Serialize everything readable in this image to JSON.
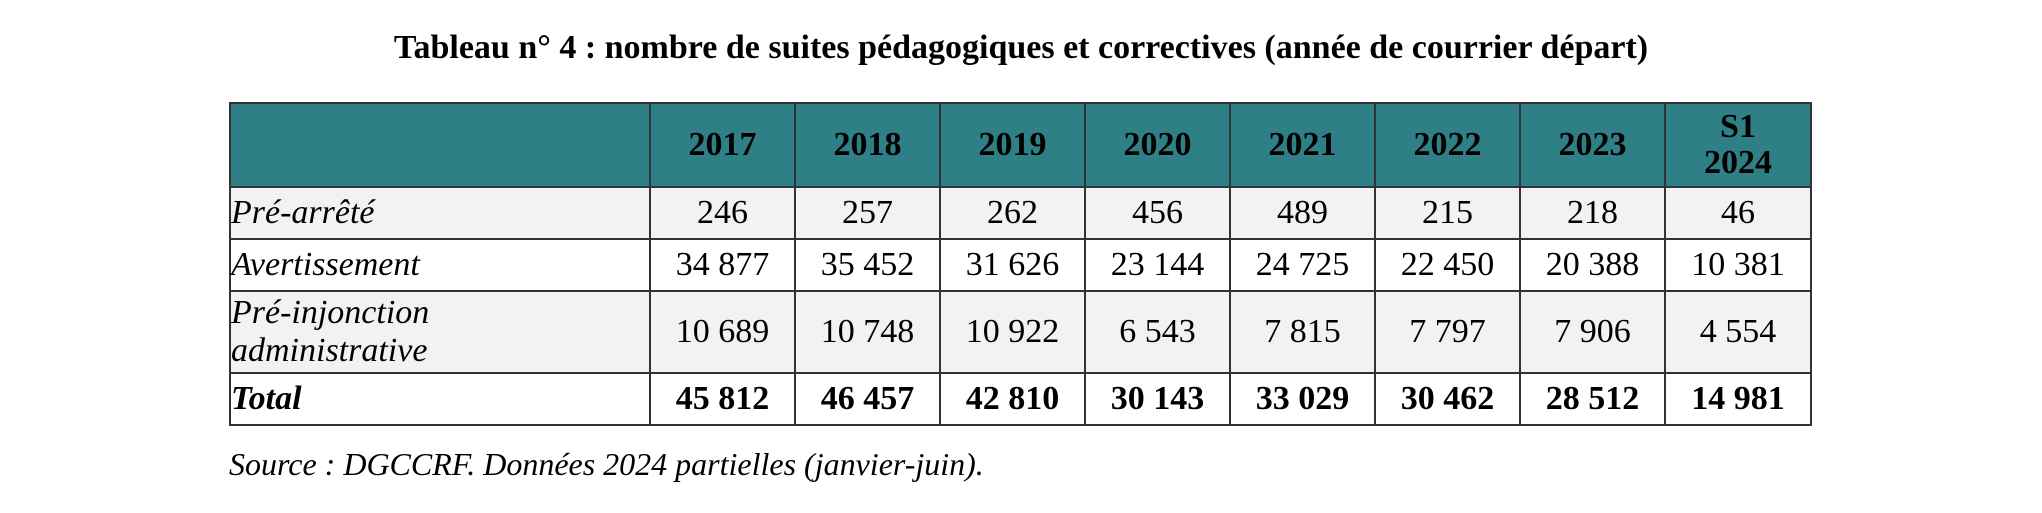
{
  "title": "Tableau n° 4 :  nombre de suites pédagogiques et correctives (année de courrier départ)",
  "table": {
    "corner": "",
    "columns": [
      "2017",
      "2018",
      "2019",
      "2020",
      "2021",
      "2022",
      "2023",
      "S1 2024"
    ],
    "rows": [
      {
        "label": "Pré-arrêté",
        "values": [
          "246",
          "257",
          "262",
          "456",
          "489",
          "215",
          "218",
          "46"
        ]
      },
      {
        "label": "Avertissement",
        "values": [
          "34 877",
          "35 452",
          "31 626",
          "23 144",
          "24 725",
          "22 450",
          "20 388",
          "10 381"
        ]
      },
      {
        "label": "Pré-injonction administrative",
        "values": [
          "10 689",
          "10 748",
          "10 922",
          "6 543",
          "7 815",
          "7 797",
          "7 906",
          "4 554"
        ]
      },
      {
        "label": "Total",
        "values": [
          "45 812",
          "46 457",
          "42 810",
          "30 143",
          "33 029",
          "30 462",
          "28 512",
          "14 981"
        ]
      }
    ]
  },
  "colors": {
    "header_background": "#2e7f86",
    "shaded_row": "#f2f2f2",
    "border": "#333333"
  },
  "source": "Source : DGCCRF. Données 2024 partielles (janvier-juin)."
}
